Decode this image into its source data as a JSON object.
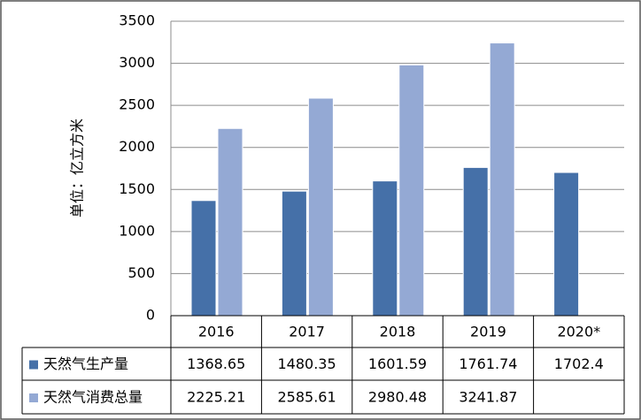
{
  "chart_data": {
    "type": "bar",
    "ylabel": "单位：亿立方米",
    "categories": [
      "2016",
      "2017",
      "2018",
      "2019",
      "2020*"
    ],
    "series": [
      {
        "name": "天然气生产量",
        "color": "#4570a8",
        "values": [
          1368.65,
          1480.35,
          1601.59,
          1761.74,
          1702.4
        ]
      },
      {
        "name": "天然气消费总量",
        "color": "#94a9d4",
        "values": [
          2225.21,
          2585.61,
          2980.48,
          3241.87,
          null
        ]
      }
    ],
    "ylim": [
      0,
      3500
    ],
    "yticks": [
      0,
      500,
      1000,
      1500,
      2000,
      2500,
      3000,
      3500
    ],
    "grid": true
  }
}
